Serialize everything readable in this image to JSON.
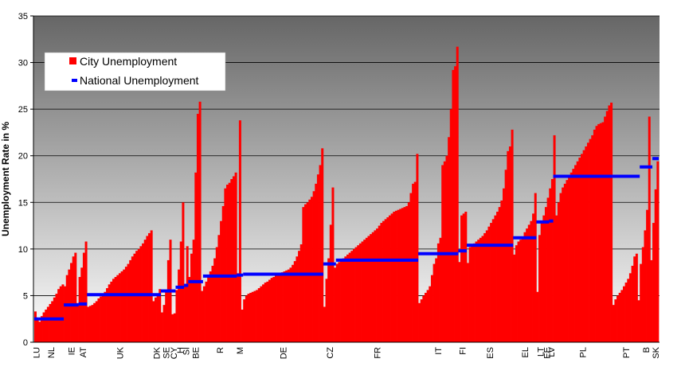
{
  "chart_data": {
    "type": "bar",
    "title": "",
    "ylabel": "Unemployment Rate in %",
    "ylim": [
      0,
      35
    ],
    "yticks": [
      0,
      5,
      10,
      15,
      20,
      25,
      30,
      35
    ],
    "grid": true,
    "legend_position": "top-left",
    "colors": {
      "city": "#ff0000",
      "national": "#0000ff",
      "background_top": "#666666",
      "background_bottom": "#ffffff"
    },
    "series": [
      {
        "name": "City Unemployment"
      },
      {
        "name": "National Unemployment"
      }
    ],
    "countries": [
      {
        "code": "LU",
        "national": 2.5,
        "city": [
          3.3,
          2.6
        ]
      },
      {
        "code": "NL",
        "national": 2.5,
        "city": [
          2.2,
          2.8,
          3.2,
          3.5,
          3.8,
          4.1,
          4.4,
          4.8,
          5.2,
          5.7,
          6.0,
          6.2
        ]
      },
      {
        "code": "IE",
        "national": 4.0,
        "city": [
          6.0,
          7.2,
          7.8,
          8.5,
          9.2,
          9.6,
          4.2
        ]
      },
      {
        "code": "AT",
        "national": 4.1,
        "city": [
          7.0,
          8.0,
          9.6,
          10.8
        ]
      },
      {
        "code": "UK",
        "national": 5.1,
        "city": [
          3.8,
          3.9,
          4.0,
          4.2,
          4.4,
          4.7,
          4.9,
          5.1,
          5.4,
          5.8,
          6.2,
          6.5,
          6.8,
          7.0,
          7.2,
          7.4,
          7.6,
          7.8,
          8.1,
          8.4,
          8.8,
          9.2,
          9.5,
          9.8,
          10.0,
          10.3,
          10.6,
          11.0,
          11.4,
          11.7,
          12.0
        ]
      },
      {
        "code": "DK",
        "national": 5.1,
        "city": [
          4.4,
          4.8,
          5.2,
          5.7
        ]
      },
      {
        "code": "SE",
        "national": 5.5,
        "city": [
          3.2,
          4.0,
          5.6,
          8.8,
          11.0
        ]
      },
      {
        "code": "CY",
        "national": 5.5,
        "city": [
          3.0,
          3.1
        ]
      },
      {
        "code": "H",
        "national": 5.9,
        "city": [
          5.6,
          7.8,
          10.8,
          15.0
        ]
      },
      {
        "code": "SI",
        "national": 6.1,
        "city": [
          6.2,
          10.3
        ]
      },
      {
        "code": "BE",
        "national": 6.5,
        "city": [
          7.0,
          9.5,
          11.0,
          18.2,
          24.5,
          25.8,
          5.5
        ]
      },
      {
        "code": "R",
        "national": 7.1,
        "city": [
          6.0,
          6.5,
          7.0,
          7.6,
          8.2,
          9.0,
          10.2,
          11.5,
          13.0,
          14.6,
          16.5,
          16.9,
          17.1,
          17.5,
          17.8,
          18.2
        ]
      },
      {
        "code": "M",
        "national": 7.2,
        "city": [
          7.4,
          23.8,
          3.5
        ]
      },
      {
        "code": "DE",
        "national": 7.3,
        "city": [
          4.6,
          5.0,
          5.2,
          5.3,
          5.4,
          5.5,
          5.6,
          5.8,
          6.0,
          6.2,
          6.4,
          6.5,
          6.7,
          6.9,
          7.0,
          7.2,
          7.3,
          7.4,
          7.5,
          7.6,
          7.7,
          7.8,
          8.0,
          8.3,
          8.7,
          9.2,
          9.8,
          10.5,
          14.5,
          14.8,
          15.0,
          15.3,
          15.6,
          16.2,
          17.0,
          18.0,
          19.0,
          20.8
        ]
      },
      {
        "code": "CZ",
        "national": 8.4,
        "city": [
          3.8,
          6.8,
          9.0,
          12.6,
          16.6,
          8.0
        ]
      },
      {
        "code": "FR",
        "national": 8.8,
        "city": [
          8.4,
          8.6,
          8.8,
          9.0,
          9.2,
          9.4,
          9.6,
          9.8,
          10.0,
          10.2,
          10.4,
          10.6,
          10.8,
          11.0,
          11.2,
          11.4,
          11.6,
          11.8,
          12.0,
          12.2,
          12.5,
          12.8,
          13.0,
          13.2,
          13.4,
          13.6,
          13.8,
          14.0,
          14.1,
          14.2,
          14.3,
          14.4,
          14.5,
          14.6,
          15.0,
          16.0,
          17.0,
          17.2,
          20.2
        ]
      },
      {
        "code": "IT",
        "national": 9.5,
        "city": [
          4.2,
          4.6,
          5.0,
          5.3,
          5.6,
          6.0,
          7.2,
          8.4,
          9.0,
          10.6,
          11.2,
          19.0,
          19.4,
          20.0,
          22.0,
          25.0,
          29.2,
          29.6,
          31.7
        ]
      },
      {
        "code": "FI",
        "national": 9.8,
        "city": [
          8.6,
          13.6,
          13.8,
          14.0
        ]
      },
      {
        "code": "ES",
        "national": 10.4,
        "city": [
          8.5,
          10.2,
          10.4,
          10.6,
          10.8,
          11.0,
          11.2,
          11.4,
          11.7,
          12.0,
          12.4,
          12.8,
          13.2,
          13.6,
          14.0,
          14.5,
          15.2,
          16.5,
          18.5,
          20.5,
          21.0,
          22.8
        ]
      },
      {
        "code": "EL",
        "national": 11.2,
        "city": [
          9.4,
          10.4,
          10.8,
          11.0,
          11.2,
          11.8,
          12.2,
          12.6,
          13.0,
          13.8,
          16.0
        ]
      },
      {
        "code": "LT",
        "national": 12.9,
        "city": [
          5.4,
          11.5,
          12.8,
          13.6
        ]
      },
      {
        "code": "EE",
        "national": 12.9,
        "city": [
          14.5,
          15.5
        ]
      },
      {
        "code": "LV",
        "national": 13.0,
        "city": [
          16.5,
          17.5
        ]
      },
      {
        "code": "PL",
        "national": 17.8,
        "city": [
          22.2,
          13.6,
          15.0,
          16.0,
          16.6,
          17.0,
          17.4,
          17.8,
          18.2,
          18.6,
          19.0,
          19.4,
          19.8,
          20.2,
          20.6,
          21.0,
          21.4,
          21.8,
          22.2,
          22.8,
          23.2,
          23.4,
          23.5,
          23.6,
          24.2,
          24.8,
          25.4,
          25.7
        ]
      },
      {
        "code": "PT",
        "national": 17.8,
        "city": [
          4.0,
          4.6,
          5.0,
          5.3,
          5.6,
          6.0,
          6.4,
          6.8,
          7.4,
          8.2,
          9.2,
          9.5,
          4.5
        ]
      },
      {
        "code": "B",
        "national": 18.8,
        "city": [
          8.4,
          10.2,
          12.0,
          14.2,
          24.2,
          8.8
        ]
      },
      {
        "code": "SK",
        "national": 19.7,
        "city": [
          12.8,
          16.4,
          19.4
        ]
      }
    ]
  }
}
